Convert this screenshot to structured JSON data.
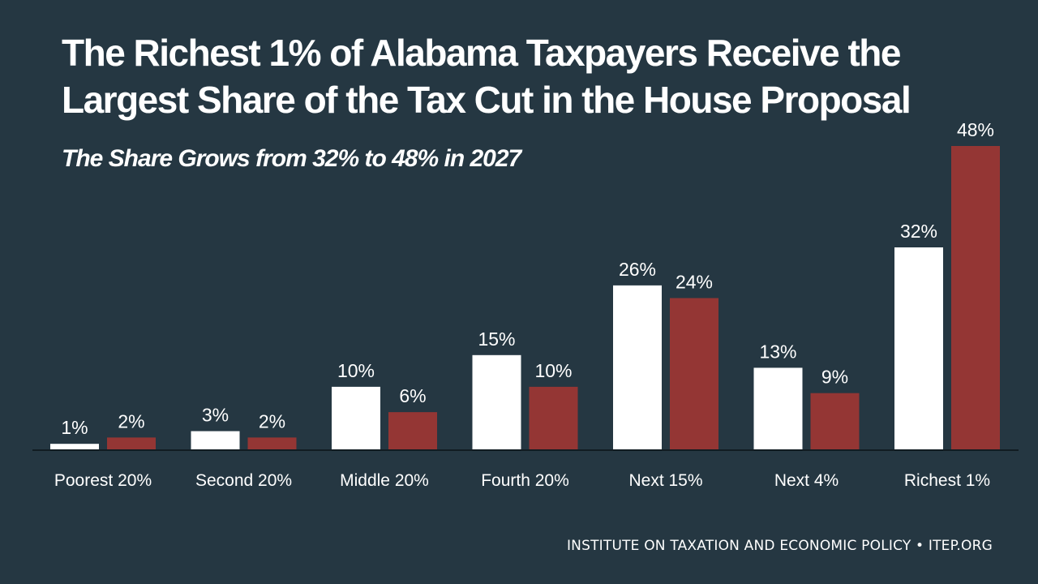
{
  "title": "The Richest 1% of Alabama Taxpayers Receive the Largest Share of the Tax Cut in the House Proposal",
  "subtitle": "The Share Grows from 32% to 48% in 2027",
  "source": "INSTITUTE ON TAXATION AND ECONOMIC POLICY • ITEP.ORG",
  "colors": {
    "background": "#253742",
    "series_1": "#ffffff",
    "series_2": "#943634",
    "text": "#ffffff"
  },
  "chart_data": {
    "type": "bar",
    "categories": [
      "Poorest 20%",
      "Second 20%",
      "Middle 20%",
      "Fourth 20%",
      "Next 15%",
      "Next 4%",
      "Richest 1%"
    ],
    "series": [
      {
        "values": [
          1,
          3,
          10,
          15,
          26,
          13,
          32
        ],
        "labels": [
          "1%",
          "3%",
          "10%",
          "15%",
          "26%",
          "13%",
          "32%"
        ],
        "color": "#ffffff"
      },
      {
        "values": [
          2,
          2,
          6,
          10,
          24,
          9,
          48
        ],
        "labels": [
          "2%",
          "2%",
          "6%",
          "10%",
          "24%",
          "9%",
          "48%"
        ],
        "color": "#943634"
      }
    ],
    "ylim": [
      0,
      48
    ],
    "grid": false,
    "legend": "none"
  }
}
